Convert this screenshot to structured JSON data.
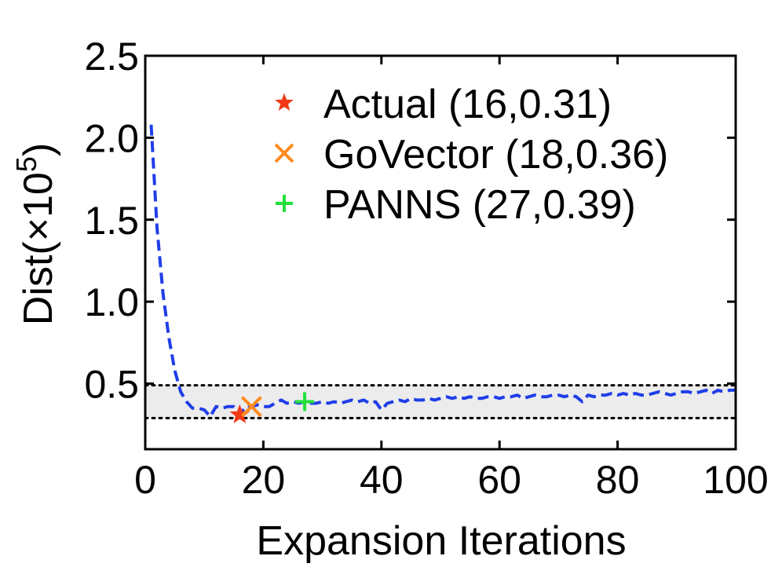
{
  "chart_data": {
    "type": "line",
    "xlabel": "Expansion Iterations",
    "ylabel_main": "Dist(×10",
    "ylabel_sup": "5",
    "ylabel_close": ")",
    "xlim": [
      0,
      100
    ],
    "ylim": [
      0.1,
      2.5
    ],
    "xticks": [
      0,
      20,
      40,
      60,
      80,
      100
    ],
    "xtick_labels": [
      "0",
      "20",
      "40",
      "60",
      "80",
      "100"
    ],
    "yticks": [
      0.5,
      1.0,
      1.5,
      2.0,
      2.5
    ],
    "ytick_labels": [
      "0.5",
      "1.0",
      "1.5",
      "2.0",
      "2.5"
    ],
    "band": {
      "y_low": 0.29,
      "y_high": 0.49,
      "color": "#ececec"
    },
    "series": [
      {
        "style": "dashed",
        "color": "#1f3ee8",
        "x": [
          1,
          2,
          3,
          4,
          5,
          6,
          7,
          8,
          9,
          10,
          11,
          12,
          13,
          14,
          15,
          16,
          17,
          18,
          19,
          20,
          21,
          22,
          23,
          24,
          25,
          26,
          27,
          28,
          29,
          30,
          31,
          32,
          33,
          34,
          35,
          36,
          37,
          38,
          39,
          40,
          41,
          42,
          43,
          44,
          45,
          46,
          47,
          48,
          49,
          50,
          51,
          52,
          53,
          54,
          55,
          56,
          57,
          58,
          59,
          60,
          61,
          62,
          63,
          64,
          65,
          66,
          67,
          68,
          69,
          70,
          71,
          72,
          73,
          74,
          75,
          76,
          77,
          78,
          79,
          80,
          81,
          82,
          83,
          84,
          85,
          86,
          87,
          88,
          89,
          90,
          91,
          92,
          93,
          94,
          95,
          96,
          97,
          98,
          99,
          100
        ],
        "y": [
          2.08,
          1.45,
          1.05,
          0.78,
          0.58,
          0.45,
          0.39,
          0.35,
          0.35,
          0.34,
          0.3,
          0.36,
          0.35,
          0.36,
          0.36,
          0.31,
          0.36,
          0.36,
          0.37,
          0.36,
          0.36,
          0.38,
          0.4,
          0.38,
          0.39,
          0.38,
          0.39,
          0.38,
          0.38,
          0.39,
          0.38,
          0.39,
          0.38,
          0.39,
          0.4,
          0.39,
          0.4,
          0.38,
          0.39,
          0.34,
          0.38,
          0.39,
          0.4,
          0.39,
          0.41,
          0.4,
          0.4,
          0.41,
          0.4,
          0.41,
          0.42,
          0.41,
          0.42,
          0.41,
          0.42,
          0.41,
          0.41,
          0.42,
          0.42,
          0.41,
          0.42,
          0.42,
          0.43,
          0.41,
          0.42,
          0.43,
          0.42,
          0.42,
          0.43,
          0.43,
          0.42,
          0.43,
          0.42,
          0.39,
          0.43,
          0.42,
          0.43,
          0.43,
          0.44,
          0.43,
          0.44,
          0.43,
          0.44,
          0.43,
          0.43,
          0.44,
          0.45,
          0.44,
          0.43,
          0.44,
          0.45,
          0.45,
          0.44,
          0.45,
          0.46,
          0.44,
          0.46,
          0.45,
          0.46,
          0.46
        ]
      }
    ],
    "markers": [
      {
        "label": "Actual (16,0.31)",
        "x": 16,
        "y": 0.31,
        "symbol": "star",
        "color": "#f03a17"
      },
      {
        "label": "GoVector (18,0.36)",
        "x": 18,
        "y": 0.36,
        "symbol": "x",
        "color": "#ff8a1e"
      },
      {
        "label": "PANNS (27,0.39)",
        "x": 27,
        "y": 0.39,
        "symbol": "plus",
        "color": "#22e03a"
      }
    ],
    "legend_position": "top-right",
    "grid": false
  }
}
